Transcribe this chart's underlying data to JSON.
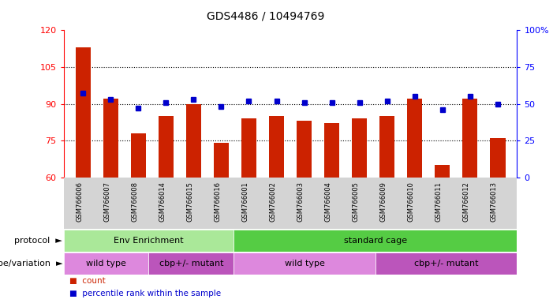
{
  "title": "GDS4486 / 10494769",
  "samples": [
    "GSM766006",
    "GSM766007",
    "GSM766008",
    "GSM766014",
    "GSM766015",
    "GSM766016",
    "GSM766001",
    "GSM766002",
    "GSM766003",
    "GSM766004",
    "GSM766005",
    "GSM766009",
    "GSM766010",
    "GSM766011",
    "GSM766012",
    "GSM766013"
  ],
  "counts": [
    113,
    92,
    78,
    85,
    90,
    74,
    84,
    85,
    83,
    82,
    84,
    85,
    92,
    65,
    92,
    76
  ],
  "percentiles": [
    57,
    53,
    47,
    51,
    53,
    48,
    52,
    52,
    51,
    51,
    51,
    52,
    55,
    46,
    55,
    50
  ],
  "ylim_left": [
    60,
    120
  ],
  "ylim_right": [
    0,
    100
  ],
  "yticks_left": [
    60,
    75,
    90,
    105,
    120
  ],
  "yticks_right": [
    0,
    25,
    50,
    75,
    100
  ],
  "bar_color": "#cc2200",
  "dot_color": "#0000cc",
  "bg_color": "#ffffff",
  "sample_bg_color": "#d4d4d4",
  "protocol_label": "protocol",
  "genotype_label": "genotype/variation",
  "protocol_groups": [
    {
      "label": "Env Enrichment",
      "start": 0,
      "end": 6,
      "color": "#aae899"
    },
    {
      "label": "standard cage",
      "start": 6,
      "end": 16,
      "color": "#55cc44"
    }
  ],
  "genotype_groups": [
    {
      "label": "wild type",
      "start": 0,
      "end": 3,
      "color": "#dd88dd"
    },
    {
      "label": "cbp+/- mutant",
      "start": 3,
      "end": 6,
      "color": "#bb55bb"
    },
    {
      "label": "wild type",
      "start": 6,
      "end": 11,
      "color": "#dd88dd"
    },
    {
      "label": "cbp+/- mutant",
      "start": 11,
      "end": 16,
      "color": "#bb55bb"
    }
  ],
  "legend_items": [
    {
      "label": "count",
      "color": "#cc2200"
    },
    {
      "label": "percentile rank within the sample",
      "color": "#0000cc"
    }
  ]
}
